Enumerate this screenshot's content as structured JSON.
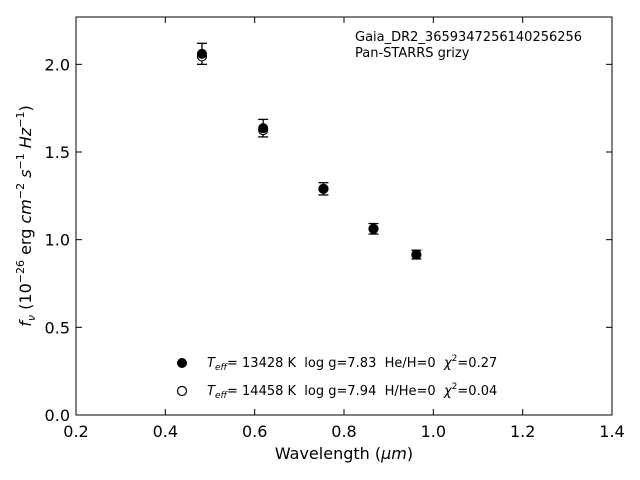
{
  "chart_data": {
    "type": "scatter",
    "annotation_lines": [
      "Gaia_DR2_3659347256140256256",
      "Pan-STARRS grizy"
    ],
    "xlabel_main": "Wavelength (",
    "xlabel_unit": "μm",
    "xlabel_close": ")",
    "ylabel_parts": {
      "f": "f",
      "nu": "ν",
      "open": " (10",
      "exp26": "−26",
      "erg": " erg ",
      "cm": "cm",
      "expm2": "−2",
      "s": " s",
      "expm1a": "−1",
      "hz": " Hz",
      "expm1b": "−1",
      "close": ")"
    },
    "xlim": [
      0.2,
      1.4
    ],
    "ylim": [
      0.0,
      2.27
    ],
    "x_ticks": [
      0.2,
      0.4,
      0.6,
      0.8,
      1.0,
      1.2,
      1.4
    ],
    "x_tick_labels": [
      "0.2",
      "0.4",
      "0.6",
      "0.8",
      "1.0",
      "1.2",
      "1.4"
    ],
    "y_ticks": [
      0.0,
      0.5,
      1.0,
      1.5,
      2.0
    ],
    "y_tick_labels": [
      "0.0",
      "0.5",
      "1.0",
      "1.5",
      "2.0"
    ],
    "grid": false,
    "legend_position": "lower-center",
    "series": [
      {
        "marker": "filled-circle",
        "color": "#000000",
        "x": [
          0.482,
          0.619,
          0.754,
          0.866,
          0.962
        ],
        "y": [
          2.06,
          1.636,
          1.29,
          1.062,
          0.915
        ],
        "yerr": [
          0.06,
          0.05,
          0.035,
          0.03,
          0.025
        ]
      },
      {
        "marker": "open-circle",
        "color": "#000000",
        "x": [
          0.482,
          0.619,
          0.754,
          0.866,
          0.962
        ],
        "y": [
          2.045,
          1.625,
          1.29,
          1.062,
          0.915
        ],
        "yerr": []
      }
    ],
    "legend": [
      {
        "marker": "filled-circle",
        "teff_sym": "T",
        "teff_sub": "eff",
        "params": "= 13428 K  log g=7.83  He/H=0  ",
        "chi_sym": "χ",
        "chi_sup": "2",
        "chi_val": "=0.27"
      },
      {
        "marker": "open-circle",
        "teff_sym": "T",
        "teff_sub": "eff",
        "params": "= 14458 K  log g=7.94  H/He=0  ",
        "chi_sym": "χ",
        "chi_sup": "2",
        "chi_val": "=0.04"
      }
    ]
  }
}
